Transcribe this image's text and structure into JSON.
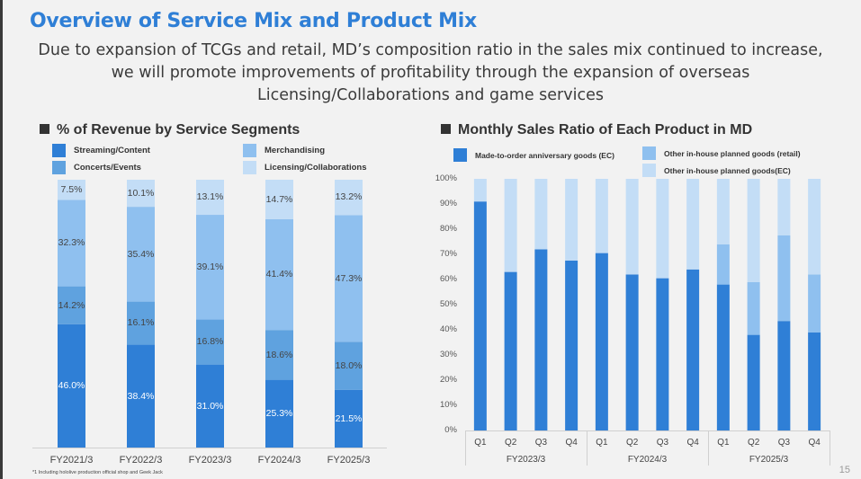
{
  "slide": {
    "title": "Overview of Service Mix and Product Mix",
    "subtitle_lines": [
      "Due to expansion of TCGs and retail, MD’s composition ratio in the sales mix continued to increase,",
      "we will promote improvements of profitability through the expansion of overseas",
      "Licensing/Collaborations and game services"
    ],
    "footnote": "*1 Including hololive production official shop and Geek Jack",
    "page_number": "15"
  },
  "colors": {
    "title": "#2f7fd6",
    "streaming": "#2f7fd6",
    "concerts": "#5fa2df",
    "merch": "#8fc0ef",
    "licensing": "#c3ddf6"
  },
  "chart_data": [
    {
      "type": "bar",
      "stacked": true,
      "title": "% of Revenue by Service Segments",
      "categories": [
        "FY2021/3",
        "FY2022/3",
        "FY2023/3",
        "FY2024/3",
        "FY2025/3"
      ],
      "series": [
        {
          "name": "Streaming/Content",
          "color": "#2f7fd6",
          "values": [
            46.0,
            38.4,
            31.0,
            25.3,
            21.5
          ],
          "labels": [
            "46.0%",
            "38.4%",
            "31.0%",
            "25.3%",
            "21.5%"
          ]
        },
        {
          "name": "Concerts/Events",
          "color": "#5fa2df",
          "values": [
            14.2,
            16.1,
            16.8,
            18.6,
            18.0
          ],
          "labels": [
            "14.2%",
            "16.1%",
            "16.8%",
            "18.6%",
            "18.0%"
          ]
        },
        {
          "name": "Merchandising",
          "color": "#8fc0ef",
          "values": [
            32.3,
            35.4,
            39.1,
            41.4,
            47.3
          ],
          "labels": [
            "32.3%",
            "35.4%",
            "39.1%",
            "41.4%",
            "47.3%"
          ]
        },
        {
          "name": "Licensing/Collaborations",
          "color": "#c3ddf6",
          "values": [
            7.5,
            10.1,
            13.1,
            14.7,
            13.2
          ],
          "labels": [
            "7.5%",
            "10.1%",
            "13.1%",
            "14.7%",
            "13.2%"
          ]
        }
      ],
      "legend": [
        "Streaming/Content",
        "Merchandising",
        "Concerts/Events",
        "Licensing/Collaborations"
      ],
      "ylim": [
        0,
        100
      ],
      "legend_position": "top"
    },
    {
      "type": "bar",
      "stacked": true,
      "title": "Monthly Sales Ratio of Each Product in MD",
      "groups": [
        "FY2023/3",
        "FY2024/3",
        "FY2025/3"
      ],
      "categories": [
        "Q1",
        "Q2",
        "Q3",
        "Q4",
        "Q1",
        "Q2",
        "Q3",
        "Q4",
        "Q1",
        "Q2",
        "Q3",
        "Q4"
      ],
      "series": [
        {
          "name": "Made-to-order anniversary goods (EC)",
          "color": "#2f7fd6",
          "values": [
            91,
            63,
            72,
            67.5,
            70.5,
            62,
            60.5,
            64,
            58,
            38,
            43.5,
            39
          ]
        },
        {
          "name": "Other in-house planned goods (retail)",
          "color": "#8fc0ef",
          "values": [
            0,
            0,
            0,
            0,
            0,
            0,
            0,
            0,
            16,
            21,
            34,
            23
          ]
        },
        {
          "name": "Other in-house planned goods(EC)",
          "color": "#c3ddf6",
          "values": [
            9,
            37,
            28,
            32.5,
            29.5,
            38,
            39.5,
            36,
            26,
            41,
            22.5,
            38
          ]
        }
      ],
      "yticks": [
        "0%",
        "10%",
        "20%",
        "30%",
        "40%",
        "50%",
        "60%",
        "70%",
        "80%",
        "90%",
        "100%"
      ],
      "ylim": [
        0,
        100
      ],
      "legend_position": "top"
    }
  ]
}
